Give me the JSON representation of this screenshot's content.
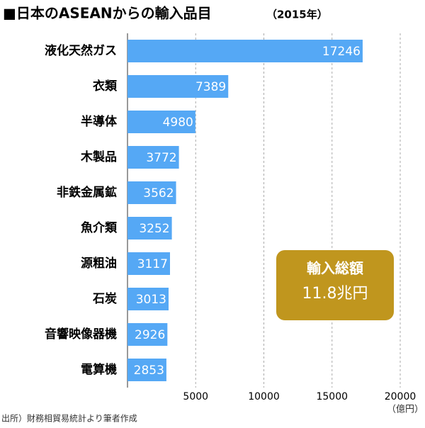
{
  "chart_data": {
    "type": "hbar",
    "title": "■日本のASEANからの輸入品目",
    "subtitle": "（2015年）",
    "categories": [
      "液化天然ガス",
      "衣類",
      "半導体",
      "木製品",
      "非鉄金属鉱",
      "魚介類",
      "源粗油",
      "石炭",
      "音響映像器機",
      "電算機"
    ],
    "values": [
      17246,
      7389,
      4980,
      3772,
      3562,
      3252,
      3117,
      3013,
      2926,
      2853
    ],
    "color": "#55a8f5",
    "xlim": [
      0,
      20000
    ],
    "xticks": [
      5000,
      10000,
      15000,
      20000
    ],
    "grid": true,
    "x_unit": "（億円）",
    "annotation": [
      "輸入総額",
      "11.8兆円"
    ],
    "annotation_color": "#c0961e",
    "source": "出所）財務相貿易統計より筆者作成"
  }
}
